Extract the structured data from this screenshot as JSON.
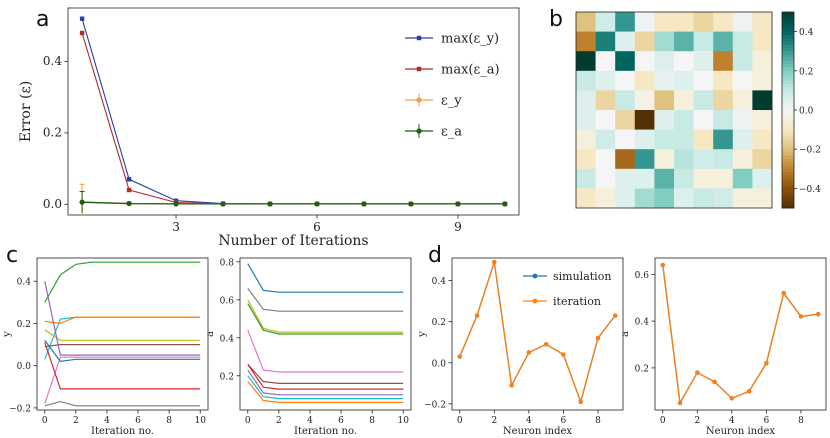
{
  "panel_labels": {
    "a": "a",
    "b": "b",
    "c": "c",
    "d": "d"
  },
  "chart_data": [
    {
      "id": "a",
      "type": "line",
      "xlabel": "Number of Iterations",
      "ylabel": "Error (ε)",
      "xlim": [
        0.7,
        10.3
      ],
      "ylim": [
        -0.03,
        0.55
      ],
      "xticks": [
        3,
        6,
        9
      ],
      "yticks": [
        0.0,
        0.2,
        0.4
      ],
      "legend_position": "right",
      "series": [
        {
          "name": "max(ε_y)",
          "color": "#2a3fa8",
          "marker": "square",
          "x": [
            1,
            2,
            3,
            4,
            5,
            6,
            7,
            8,
            9,
            10
          ],
          "y": [
            0.52,
            0.07,
            0.01,
            0.002,
            0.001,
            0.001,
            0.001,
            0.001,
            0.001,
            0.001
          ]
        },
        {
          "name": "max(ε_a)",
          "color": "#b02a2a",
          "marker": "square",
          "x": [
            1,
            2,
            3,
            4,
            5,
            6,
            7,
            8,
            9,
            10
          ],
          "y": [
            0.48,
            0.04,
            0.005,
            0.001,
            0.001,
            0.001,
            0.001,
            0.001,
            0.001,
            0.001
          ]
        },
        {
          "name": "ε_y",
          "color": "#f0a050",
          "marker": "errorbar",
          "x": [
            1,
            2,
            3,
            4,
            5,
            6,
            7,
            8,
            9,
            10
          ],
          "y": [
            0.006,
            0.002,
            0.001,
            0.001,
            0.001,
            0.001,
            0.001,
            0.001,
            0.001,
            0.001
          ],
          "err": [
            0.05,
            0.004,
            0.002,
            0.001,
            0.001,
            0.001,
            0.001,
            0.001,
            0.001,
            0.001
          ]
        },
        {
          "name": "ε_a",
          "color": "#1e5e12",
          "marker": "errorbar",
          "x": [
            1,
            2,
            3,
            4,
            5,
            6,
            7,
            8,
            9,
            10
          ],
          "y": [
            0.006,
            0.002,
            0.001,
            0.001,
            0.001,
            0.001,
            0.001,
            0.001,
            0.001,
            0.001
          ],
          "err": [
            0.03,
            0.004,
            0.002,
            0.001,
            0.001,
            0.001,
            0.001,
            0.001,
            0.001,
            0.001
          ]
        }
      ]
    },
    {
      "id": "b",
      "type": "heatmap",
      "colormap": "BrBG",
      "vmin": -0.5,
      "vmax": 0.5,
      "colorbar_ticks": [
        0.4,
        0.2,
        0.0,
        -0.2,
        -0.4
      ],
      "colorbar_labels": [
        "0.4",
        "0.2",
        "0.0",
        "−0.2",
        "−0.4"
      ],
      "matrix": [
        [
          -0.2,
          0.08,
          0.3,
          0.02,
          -0.1,
          -0.1,
          -0.15,
          -0.1,
          0.02,
          -0.1
        ],
        [
          -0.3,
          0.35,
          0.05,
          -0.15,
          0.15,
          0.25,
          0.1,
          0.25,
          0.1,
          -0.1
        ],
        [
          0.5,
          0.0,
          0.4,
          0.0,
          0.05,
          0.0,
          0.05,
          -0.3,
          0.1,
          -0.05
        ],
        [
          0.1,
          0.05,
          0.0,
          -0.1,
          0.03,
          0.05,
          0.0,
          -0.1,
          0.0,
          -0.05
        ],
        [
          0.05,
          -0.15,
          0.1,
          -0.03,
          -0.2,
          -0.05,
          0.1,
          -0.15,
          -0.05,
          0.5
        ],
        [
          0.05,
          0.0,
          -0.15,
          -0.5,
          0.05,
          0.1,
          0.0,
          0.1,
          0.02,
          -0.05
        ],
        [
          -0.05,
          0.08,
          0.0,
          0.05,
          0.1,
          0.1,
          -0.1,
          0.3,
          0.05,
          -0.1
        ],
        [
          -0.1,
          0.0,
          -0.35,
          0.3,
          -0.05,
          0.12,
          0.08,
          0.1,
          -0.05,
          -0.15
        ],
        [
          0.1,
          0.0,
          0.05,
          0.05,
          0.25,
          0.1,
          -0.05,
          -0.05,
          0.2,
          0.05
        ],
        [
          -0.1,
          -0.05,
          0.05,
          0.15,
          0.2,
          0.05,
          0.1,
          0.08,
          -0.05,
          -0.05
        ]
      ]
    },
    {
      "id": "c-left",
      "type": "line",
      "xlabel": "Iteration no.",
      "ylabel": "y",
      "xlim": [
        -0.5,
        10.5
      ],
      "ylim": [
        -0.21,
        0.51
      ],
      "xticks": [
        0,
        2,
        4,
        6,
        8,
        10
      ],
      "yticks": [
        -0.2,
        0.0,
        0.2,
        0.4
      ],
      "series": [
        {
          "color": "#2ca02c",
          "x": [
            0,
            1,
            2,
            3,
            4,
            5,
            6,
            7,
            8,
            9,
            10
          ],
          "y": [
            0.3,
            0.43,
            0.48,
            0.49,
            0.49,
            0.49,
            0.49,
            0.49,
            0.49,
            0.49,
            0.49
          ]
        },
        {
          "color": "#17becf",
          "x": [
            0,
            1,
            2,
            3,
            4,
            5,
            6,
            7,
            8,
            9,
            10
          ],
          "y": [
            0.03,
            0.22,
            0.23,
            0.23,
            0.23,
            0.23,
            0.23,
            0.23,
            0.23,
            0.23,
            0.23
          ]
        },
        {
          "color": "#ff7f0e",
          "x": [
            0,
            1,
            2,
            3,
            4,
            5,
            6,
            7,
            8,
            9,
            10
          ],
          "y": [
            0.21,
            0.2,
            0.23,
            0.23,
            0.23,
            0.23,
            0.23,
            0.23,
            0.23,
            0.23,
            0.23
          ]
        },
        {
          "color": "#bcbd22",
          "x": [
            0,
            1,
            2,
            3,
            4,
            5,
            6,
            7,
            8,
            9,
            10
          ],
          "y": [
            0.17,
            0.12,
            0.12,
            0.12,
            0.12,
            0.12,
            0.12,
            0.12,
            0.12,
            0.12,
            0.12
          ]
        },
        {
          "color": "#8c564b",
          "x": [
            0,
            1,
            2,
            3,
            4,
            5,
            6,
            7,
            8,
            9,
            10
          ],
          "y": [
            0.09,
            0.1,
            0.1,
            0.1,
            0.1,
            0.1,
            0.1,
            0.1,
            0.1,
            0.1,
            0.1
          ]
        },
        {
          "color": "#9467bd",
          "x": [
            0,
            1,
            2,
            3,
            4,
            5,
            6,
            7,
            8,
            9,
            10
          ],
          "y": [
            0.4,
            0.05,
            0.05,
            0.05,
            0.05,
            0.05,
            0.05,
            0.05,
            0.05,
            0.05,
            0.05
          ]
        },
        {
          "color": "#e377c2",
          "x": [
            0,
            1,
            2,
            3,
            4,
            5,
            6,
            7,
            8,
            9,
            10
          ],
          "y": [
            -0.18,
            0.04,
            0.04,
            0.04,
            0.04,
            0.04,
            0.04,
            0.04,
            0.04,
            0.04,
            0.04
          ]
        },
        {
          "color": "#1f77b4",
          "x": [
            0,
            1,
            2,
            3,
            4,
            5,
            6,
            7,
            8,
            9,
            10
          ],
          "y": [
            0.12,
            0.02,
            0.03,
            0.03,
            0.03,
            0.03,
            0.03,
            0.03,
            0.03,
            0.03,
            0.03
          ]
        },
        {
          "color": "#d62728",
          "x": [
            0,
            1,
            2,
            3,
            4,
            5,
            6,
            7,
            8,
            9,
            10
          ],
          "y": [
            0.11,
            -0.11,
            -0.11,
            -0.11,
            -0.11,
            -0.11,
            -0.11,
            -0.11,
            -0.11,
            -0.11,
            -0.11
          ]
        },
        {
          "color": "#7f7f7f",
          "x": [
            0,
            1,
            2,
            3,
            4,
            5,
            6,
            7,
            8,
            9,
            10
          ],
          "y": [
            -0.19,
            -0.17,
            -0.19,
            -0.19,
            -0.19,
            -0.19,
            -0.19,
            -0.19,
            -0.19,
            -0.19,
            -0.19
          ]
        }
      ]
    },
    {
      "id": "c-right",
      "type": "line",
      "xlabel": "Iteration no.",
      "ylabel": "a",
      "xlim": [
        -0.5,
        10.5
      ],
      "ylim": [
        0.02,
        0.82
      ],
      "xticks": [
        0,
        2,
        4,
        6,
        8,
        10
      ],
      "yticks": [
        0.2,
        0.4,
        0.6,
        0.8
      ],
      "series": [
        {
          "color": "#1f77b4",
          "x": [
            0,
            1,
            2,
            3,
            4,
            5,
            6,
            7,
            8,
            9,
            10
          ],
          "y": [
            0.79,
            0.65,
            0.64,
            0.64,
            0.64,
            0.64,
            0.64,
            0.64,
            0.64,
            0.64,
            0.64
          ]
        },
        {
          "color": "#7f7f7f",
          "x": [
            0,
            1,
            2,
            3,
            4,
            5,
            6,
            7,
            8,
            9,
            10
          ],
          "y": [
            0.66,
            0.55,
            0.54,
            0.54,
            0.54,
            0.54,
            0.54,
            0.54,
            0.54,
            0.54,
            0.54
          ]
        },
        {
          "color": "#bcbd22",
          "x": [
            0,
            1,
            2,
            3,
            4,
            5,
            6,
            7,
            8,
            9,
            10
          ],
          "y": [
            0.6,
            0.45,
            0.43,
            0.43,
            0.43,
            0.43,
            0.43,
            0.43,
            0.43,
            0.43,
            0.43
          ]
        },
        {
          "color": "#2ca02c",
          "x": [
            0,
            1,
            2,
            3,
            4,
            5,
            6,
            7,
            8,
            9,
            10
          ],
          "y": [
            0.58,
            0.44,
            0.42,
            0.42,
            0.42,
            0.42,
            0.42,
            0.42,
            0.42,
            0.42,
            0.42
          ]
        },
        {
          "color": "#e377c2",
          "x": [
            0,
            1,
            2,
            3,
            4,
            5,
            6,
            7,
            8,
            9,
            10
          ],
          "y": [
            0.44,
            0.23,
            0.22,
            0.22,
            0.22,
            0.22,
            0.22,
            0.22,
            0.22,
            0.22,
            0.22
          ]
        },
        {
          "color": "#8c564b",
          "x": [
            0,
            1,
            2,
            3,
            4,
            5,
            6,
            7,
            8,
            9,
            10
          ],
          "y": [
            0.26,
            0.17,
            0.16,
            0.16,
            0.16,
            0.16,
            0.16,
            0.16,
            0.16,
            0.16,
            0.16
          ]
        },
        {
          "color": "#d62728",
          "x": [
            0,
            1,
            2,
            3,
            4,
            5,
            6,
            7,
            8,
            9,
            10
          ],
          "y": [
            0.26,
            0.14,
            0.13,
            0.13,
            0.13,
            0.13,
            0.13,
            0.13,
            0.13,
            0.13,
            0.13
          ]
        },
        {
          "color": "#9467bd",
          "x": [
            0,
            1,
            2,
            3,
            4,
            5,
            6,
            7,
            8,
            9,
            10
          ],
          "y": [
            0.23,
            0.11,
            0.1,
            0.1,
            0.1,
            0.1,
            0.1,
            0.1,
            0.1,
            0.1,
            0.1
          ]
        },
        {
          "color": "#17becf",
          "x": [
            0,
            1,
            2,
            3,
            4,
            5,
            6,
            7,
            8,
            9,
            10
          ],
          "y": [
            0.2,
            0.09,
            0.08,
            0.08,
            0.08,
            0.08,
            0.08,
            0.08,
            0.08,
            0.08,
            0.08
          ]
        },
        {
          "color": "#ff7f0e",
          "x": [
            0,
            1,
            2,
            3,
            4,
            5,
            6,
            7,
            8,
            9,
            10
          ],
          "y": [
            0.17,
            0.07,
            0.06,
            0.06,
            0.06,
            0.06,
            0.06,
            0.06,
            0.06,
            0.06,
            0.06
          ]
        }
      ]
    },
    {
      "id": "d-left",
      "type": "line",
      "xlabel": "Neuron index",
      "ylabel": "y",
      "xlim": [
        -0.45,
        9.45
      ],
      "ylim": [
        -0.23,
        0.51
      ],
      "xticks": [
        0,
        2,
        4,
        6,
        8
      ],
      "yticks": [
        -0.2,
        0.0,
        0.2,
        0.4
      ],
      "legend_position": "upper right",
      "series": [
        {
          "name": "simulation",
          "color": "#1f77b4",
          "x": [
            0,
            1,
            2,
            3,
            4,
            5,
            6,
            7,
            8,
            9
          ],
          "y": [
            0.03,
            0.23,
            0.49,
            -0.11,
            0.05,
            0.09,
            0.04,
            -0.19,
            0.12,
            0.23
          ]
        },
        {
          "name": "iteration",
          "color": "#ff7f0e",
          "x": [
            0,
            1,
            2,
            3,
            4,
            5,
            6,
            7,
            8,
            9
          ],
          "y": [
            0.03,
            0.23,
            0.49,
            -0.11,
            0.05,
            0.09,
            0.04,
            -0.19,
            0.12,
            0.23
          ]
        }
      ]
    },
    {
      "id": "d-right",
      "type": "line",
      "xlabel": "Neuron index",
      "ylabel": "a",
      "xlim": [
        -0.45,
        9.45
      ],
      "ylim": [
        0.02,
        0.67
      ],
      "xticks": [
        0,
        2,
        4,
        6,
        8
      ],
      "yticks": [
        0.2,
        0.4,
        0.6
      ],
      "series": [
        {
          "color": "#1f77b4",
          "x": [
            0,
            1,
            2,
            3,
            4,
            5,
            6,
            7,
            8,
            9
          ],
          "y": [
            0.64,
            0.05,
            0.18,
            0.14,
            0.07,
            0.1,
            0.22,
            0.52,
            0.42,
            0.43
          ]
        },
        {
          "color": "#ff7f0e",
          "x": [
            0,
            1,
            2,
            3,
            4,
            5,
            6,
            7,
            8,
            9
          ],
          "y": [
            0.64,
            0.05,
            0.18,
            0.14,
            0.07,
            0.1,
            0.22,
            0.52,
            0.42,
            0.43
          ]
        }
      ]
    }
  ]
}
